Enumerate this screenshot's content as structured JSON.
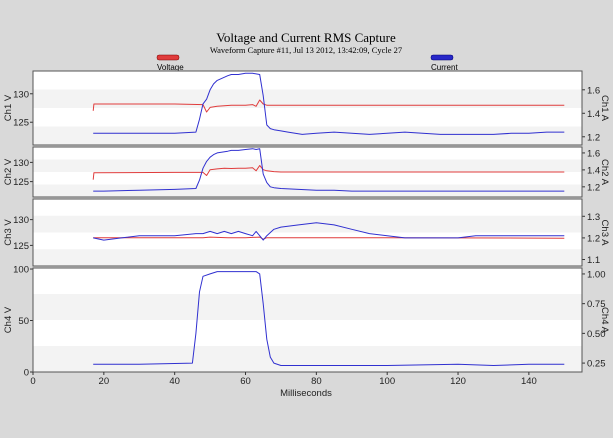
{
  "chart_data": {
    "type": "line",
    "title": "Voltage and Current RMS Capture",
    "subtitle": "Waveform Capture #11, Jul 13 2012, 13:42:09,  Cycle 27",
    "xlabel": "Milliseconds",
    "xlim": [
      0,
      155
    ],
    "xticks": [
      0,
      20,
      40,
      60,
      80,
      100,
      120,
      140
    ],
    "legend": [
      {
        "name": "Voltage",
        "color": "#e03c3c"
      },
      {
        "name": "Current",
        "color": "#3030d0"
      }
    ],
    "legend_position": "top",
    "grid": "horizontal bands",
    "panels": [
      {
        "left_label": "Ch1 V",
        "right_label": "Ch1 A",
        "left_ylim": [
          121,
          134
        ],
        "left_ticks": [
          125,
          130
        ],
        "right_ylim": [
          1.13,
          1.76
        ],
        "right_ticks": [
          1.2,
          1.4,
          1.6
        ],
        "series": [
          {
            "name": "Voltage",
            "axis": "left",
            "x": [
              17,
              17.2,
              40,
              48,
              49,
              50,
              52,
              54,
              56,
              58,
              60,
              62,
              63,
              64,
              65,
              66,
              68,
              70,
              80,
              100,
              120,
              150
            ],
            "y": [
              127,
              128.2,
              128.2,
              128.1,
              126.8,
              127.6,
              127.8,
              127.9,
              128.0,
              128.0,
              128.0,
              128.1,
              127.8,
              128.9,
              128.2,
              128.0,
              128.0,
              128.0,
              128.0,
              128.0,
              128.0,
              128.0
            ]
          },
          {
            "name": "Current",
            "axis": "right",
            "x": [
              17,
              20,
              40,
              46,
              47,
              48,
              49,
              50,
              51,
              52,
              55,
              56,
              58,
              60,
              62,
              64,
              65,
              66,
              67,
              68,
              70,
              72,
              74,
              76,
              80,
              85,
              90,
              95,
              100,
              105,
              110,
              115,
              120,
              125,
              130,
              135,
              140,
              145,
              150
            ],
            "y": [
              1.23,
              1.23,
              1.23,
              1.24,
              1.35,
              1.48,
              1.52,
              1.6,
              1.65,
              1.68,
              1.72,
              1.73,
              1.73,
              1.74,
              1.74,
              1.73,
              1.55,
              1.3,
              1.27,
              1.26,
              1.25,
              1.24,
              1.23,
              1.22,
              1.23,
              1.24,
              1.23,
              1.22,
              1.23,
              1.24,
              1.23,
              1.22,
              1.22,
              1.22,
              1.22,
              1.23,
              1.23,
              1.24,
              1.24
            ]
          }
        ]
      },
      {
        "left_label": "Ch2 V",
        "right_label": "Ch2 A",
        "left_ylim": [
          121,
          134
        ],
        "left_ticks": [
          125,
          130
        ],
        "right_ylim": [
          1.08,
          1.67
        ],
        "right_ticks": [
          1.2,
          1.4,
          1.6
        ],
        "series": [
          {
            "name": "Voltage",
            "axis": "left",
            "x": [
              17,
              17.2,
              40,
              48,
              49,
              50,
              52,
              54,
              56,
              58,
              60,
              62,
              63,
              64,
              65,
              66,
              68,
              70,
              80,
              100,
              120,
              150
            ],
            "y": [
              125.5,
              127.3,
              127.4,
              127.4,
              126.6,
              128.1,
              128.3,
              128.5,
              128.4,
              128.5,
              128.5,
              128.6,
              127.8,
              129.2,
              128.1,
              127.8,
              127.6,
              127.5,
              127.5,
              127.5,
              127.5,
              127.5
            ]
          },
          {
            "name": "Current",
            "axis": "right",
            "x": [
              17,
              20,
              30,
              40,
              46,
              47,
              48,
              49,
              50,
              51,
              52,
              55,
              56,
              58,
              60,
              62,
              63,
              64,
              65,
              66,
              67,
              68,
              70,
              75,
              80,
              85,
              90,
              100,
              110,
              120,
              130,
              140,
              150
            ],
            "y": [
              1.15,
              1.15,
              1.16,
              1.17,
              1.18,
              1.28,
              1.42,
              1.5,
              1.55,
              1.58,
              1.6,
              1.62,
              1.63,
              1.63,
              1.64,
              1.65,
              1.64,
              1.65,
              1.35,
              1.25,
              1.2,
              1.19,
              1.18,
              1.17,
              1.16,
              1.16,
              1.15,
              1.15,
              1.15,
              1.15,
              1.15,
              1.15,
              1.15
            ]
          }
        ]
      },
      {
        "left_label": "Ch3 V",
        "right_label": "Ch3 A",
        "left_ylim": [
          121,
          134
        ],
        "left_ticks": [
          125,
          130
        ],
        "right_ylim": [
          1.07,
          1.38
        ],
        "right_ticks": [
          1.1,
          1.2,
          1.3
        ],
        "series": [
          {
            "name": "Voltage",
            "axis": "left",
            "x": [
              17,
              40,
              48,
              50,
              55,
              60,
              64,
              65,
              66,
              70,
              100,
              150
            ],
            "y": [
              126.5,
              126.5,
              126.5,
              126.6,
              126.5,
              126.5,
              126.6,
              126.2,
              126.5,
              126.5,
              126.5,
              126.4
            ]
          },
          {
            "name": "Current",
            "axis": "right",
            "x": [
              17,
              20,
              25,
              30,
              40,
              46,
              48,
              50,
              52,
              54,
              56,
              58,
              60,
              62,
              63,
              64,
              65,
              66,
              68,
              70,
              75,
              80,
              85,
              90,
              95,
              100,
              105,
              110,
              115,
              120,
              125,
              130,
              135,
              140,
              150
            ],
            "y": [
              1.2,
              1.19,
              1.2,
              1.21,
              1.21,
              1.22,
              1.22,
              1.23,
              1.22,
              1.23,
              1.22,
              1.23,
              1.22,
              1.21,
              1.23,
              1.21,
              1.19,
              1.21,
              1.24,
              1.25,
              1.26,
              1.27,
              1.26,
              1.24,
              1.22,
              1.21,
              1.2,
              1.2,
              1.2,
              1.2,
              1.21,
              1.21,
              1.21,
              1.21,
              1.21
            ]
          }
        ]
      },
      {
        "left_label": "Ch4 V",
        "right_label": "Ch4 A",
        "left_ylim": [
          0,
          101
        ],
        "left_ticks": [
          0,
          50,
          100
        ],
        "right_ylim": [
          0.175,
          1.05
        ],
        "right_ticks": [
          0.25,
          0.5,
          0.75,
          1.0
        ],
        "right_tick_labels": [
          "0.25",
          "0.50",
          "0.75",
          "1.00"
        ],
        "series": [
          {
            "name": "Current",
            "axis": "right",
            "x": [
              17,
              30,
              45,
              46,
              47,
              48,
              50,
              52,
              55,
              60,
              63,
              64,
              65,
              66,
              67,
              68,
              70,
              80,
              100,
              120,
              130,
              140,
              150
            ],
            "y": [
              0.24,
              0.24,
              0.25,
              0.5,
              0.85,
              0.98,
              1.0,
              1.02,
              1.02,
              1.02,
              1.02,
              1.0,
              0.75,
              0.45,
              0.3,
              0.25,
              0.23,
              0.23,
              0.23,
              0.24,
              0.23,
              0.24,
              0.24
            ]
          }
        ]
      }
    ]
  }
}
